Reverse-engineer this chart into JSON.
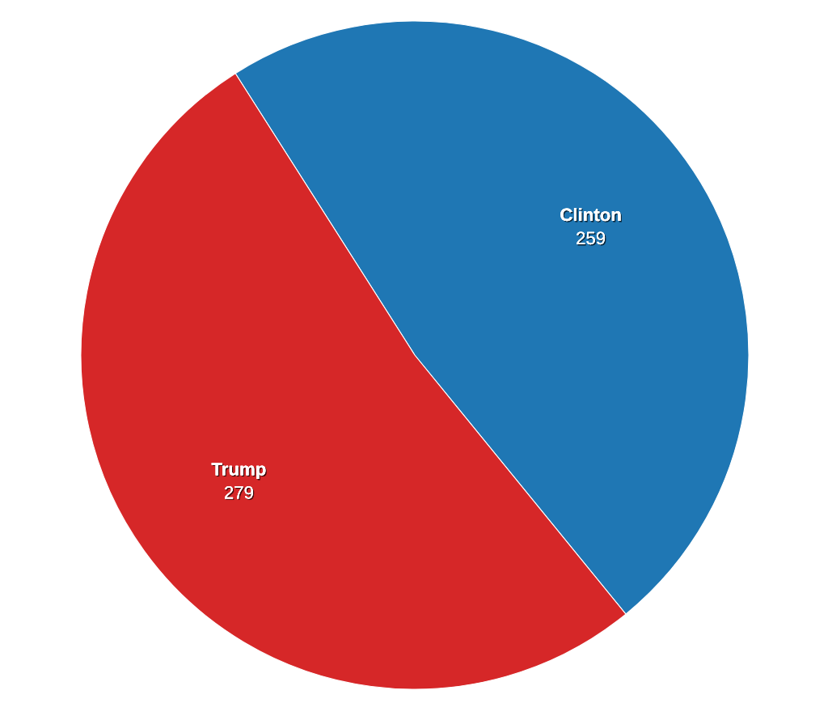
{
  "chart_data": {
    "type": "pie",
    "categories": [
      "Clinton",
      "Trump"
    ],
    "values": [
      259,
      279
    ],
    "colors": [
      "#1f77b4",
      "#d62728"
    ],
    "data_labels": true
  }
}
